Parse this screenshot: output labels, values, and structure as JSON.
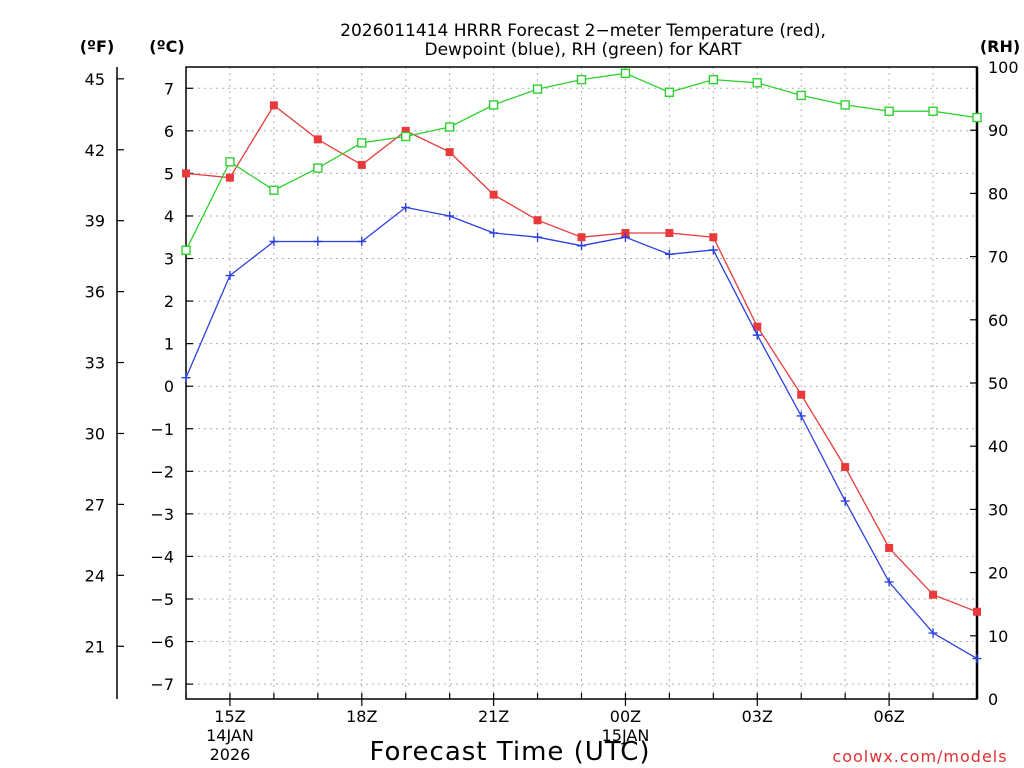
{
  "chart_data": {
    "type": "line",
    "title": "2026011414 HRRR Forecast 2−meter Temperature (red),",
    "subtitle": "Dewpoint (blue), RH (green) for KART",
    "xlabel": "Forecast Time (UTC)",
    "credit": "coolwx.com/models",
    "units": {
      "f": "(ºF)",
      "c": "(ºC)",
      "rh": "(RH)"
    },
    "colors": {
      "temperature": "#e83a3a",
      "dewpoint": "#2c3fe0",
      "rh": "#2fd12f"
    },
    "x_hours": [
      14,
      15,
      16,
      17,
      18,
      19,
      20,
      21,
      22,
      23,
      24,
      25,
      26,
      27,
      28,
      29,
      30,
      31,
      32
    ],
    "x_ticks": [
      {
        "hour": 15,
        "label": "15Z",
        "sub1": "14JAN",
        "sub2": "2026"
      },
      {
        "hour": 18,
        "label": "18Z"
      },
      {
        "hour": 21,
        "label": "21Z"
      },
      {
        "hour": 24,
        "label": "00Z",
        "sub1": "15JAN"
      },
      {
        "hour": 27,
        "label": "03Z"
      },
      {
        "hour": 30,
        "label": "06Z"
      }
    ],
    "xlim": [
      14,
      32
    ],
    "celsius_axis": {
      "ylim": [
        -7.35,
        7.5
      ],
      "ticks": [
        7,
        6,
        5,
        4,
        3,
        2,
        1,
        0,
        -1,
        -2,
        -3,
        -4,
        -5,
        -6,
        -7
      ]
    },
    "fahrenheit_axis": {
      "ticks": [
        45,
        42,
        39,
        36,
        33,
        30,
        27,
        24,
        21
      ]
    },
    "rh_axis": {
      "ylim": [
        0,
        100
      ],
      "ticks": [
        100,
        90,
        80,
        70,
        60,
        50,
        40,
        30,
        20,
        10,
        0
      ]
    },
    "series": [
      {
        "name": "Temperature",
        "axis": "c",
        "marker": "filled-square",
        "values": [
          5.0,
          4.9,
          6.6,
          5.8,
          5.2,
          6.0,
          5.5,
          4.5,
          3.9,
          3.5,
          3.6,
          3.6,
          3.5,
          1.4,
          -0.2,
          -1.9,
          -3.8,
          -4.9,
          -5.3
        ]
      },
      {
        "name": "Dewpoint",
        "axis": "c",
        "marker": "plus",
        "values": [
          0.2,
          2.6,
          3.4,
          3.4,
          3.4,
          4.2,
          4.0,
          3.6,
          3.5,
          3.3,
          3.5,
          3.1,
          3.2,
          1.2,
          -0.7,
          -2.7,
          -4.6,
          -5.8,
          -6.4
        ]
      },
      {
        "name": "RH",
        "axis": "rh",
        "marker": "open-square",
        "values": [
          71,
          85,
          80.5,
          84,
          88,
          89,
          90.5,
          94,
          96.5,
          98,
          99,
          96,
          98,
          97.5,
          95.5,
          94,
          93,
          93,
          92
        ]
      }
    ]
  }
}
